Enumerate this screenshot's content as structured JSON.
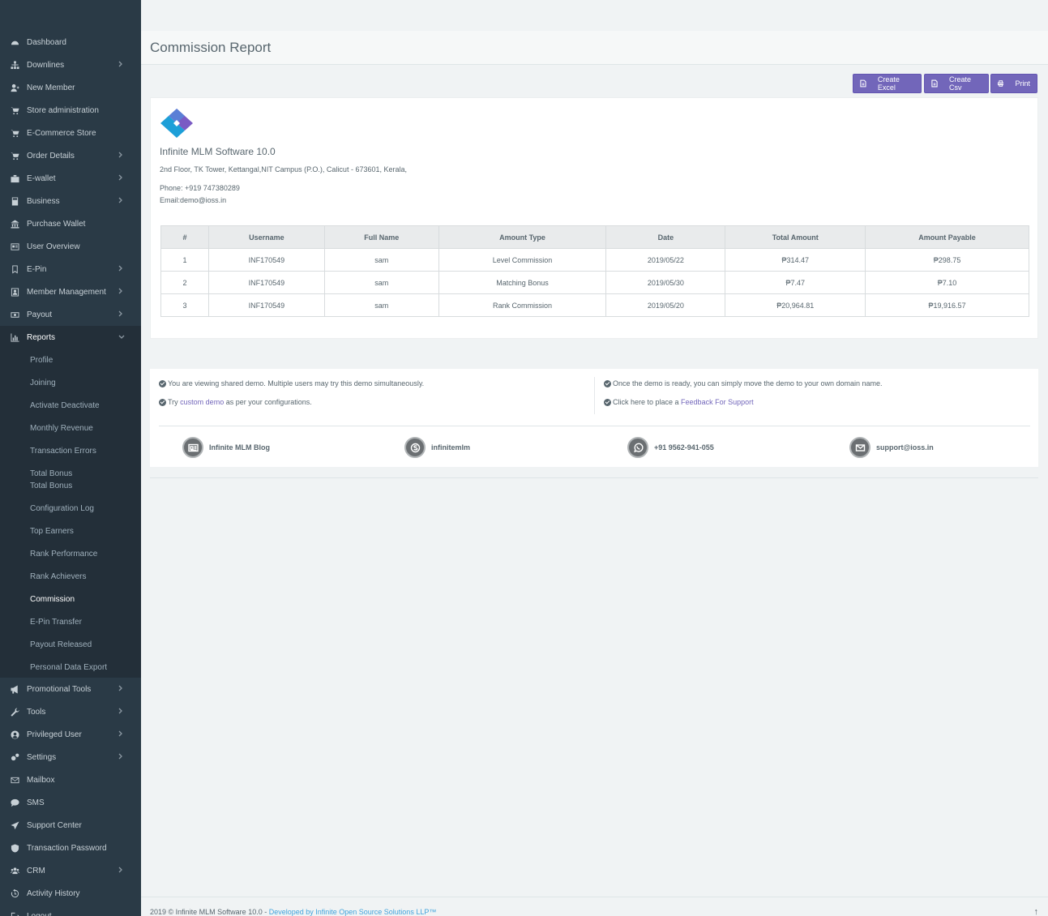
{
  "sidebar": {
    "items": [
      {
        "label": "Dashboard",
        "icon": "dashboard-icon",
        "chevron": false
      },
      {
        "label": "Downlines",
        "icon": "sitemap-icon",
        "chevron": true
      },
      {
        "label": "New Member",
        "icon": "user-plus-icon",
        "chevron": false
      },
      {
        "label": "Store administration",
        "icon": "cart-icon",
        "chevron": false
      },
      {
        "label": "E-Commerce Store",
        "icon": "cart-icon",
        "chevron": false
      },
      {
        "label": "Order Details",
        "icon": "cart-icon",
        "chevron": true
      },
      {
        "label": "E-wallet",
        "icon": "briefcase-icon",
        "chevron": true
      },
      {
        "label": "Business",
        "icon": "calculator-icon",
        "chevron": true
      },
      {
        "label": "Purchase Wallet",
        "icon": "bank-icon",
        "chevron": false
      },
      {
        "label": "User Overview",
        "icon": "id-card-icon",
        "chevron": false
      },
      {
        "label": "E-Pin",
        "icon": "bookmark-icon",
        "chevron": true
      },
      {
        "label": "Member Management",
        "icon": "user-square-icon",
        "chevron": true
      },
      {
        "label": "Payout",
        "icon": "money-icon",
        "chevron": true
      },
      {
        "label": "Reports",
        "icon": "bar-chart-icon",
        "chevron": true
      }
    ],
    "report_subitems": [
      "Profile",
      "Joining",
      "Activate Deactivate",
      "Monthly Revenue",
      "Transaction Errors",
      "Total Bonus",
      "Total Bonus",
      "Configuration Log",
      "Top Earners",
      "Rank Performance",
      "Rank Achievers",
      "Commission",
      "E-Pin Transfer",
      "Payout Released",
      "Personal Data Export"
    ],
    "items_after": [
      {
        "label": "Promotional Tools",
        "icon": "bullhorn-icon",
        "chevron": true
      },
      {
        "label": "Tools",
        "icon": "wrench-icon",
        "chevron": true
      },
      {
        "label": "Privileged User",
        "icon": "user-circle-icon",
        "chevron": true
      },
      {
        "label": "Settings",
        "icon": "cogs-icon",
        "chevron": true
      },
      {
        "label": "Mailbox",
        "icon": "envelope-icon",
        "chevron": false
      },
      {
        "label": "SMS",
        "icon": "comment-icon",
        "chevron": false
      },
      {
        "label": "Support Center",
        "icon": "plane-icon",
        "chevron": false
      },
      {
        "label": "Transaction Password",
        "icon": "shield-icon",
        "chevron": false
      },
      {
        "label": "CRM",
        "icon": "users-icon",
        "chevron": true
      },
      {
        "label": "Activity History",
        "icon": "history-icon",
        "chevron": false
      },
      {
        "label": "Logout",
        "icon": "logout-icon",
        "chevron": false
      }
    ]
  },
  "page": {
    "title": "Commission Report"
  },
  "toolbar": {
    "excel": "Create Excel",
    "csv": "Create Csv",
    "print": "Print"
  },
  "company": {
    "name": "Infinite MLM Software 10.0",
    "address": "2nd Floor, TK Tower, Kettangal,NIT Campus (P.O.), Calicut - 673601, Kerala,",
    "phone": "Phone: +919 747380289",
    "email": "Email:demo@ioss.in"
  },
  "table": {
    "headers": [
      "#",
      "Username",
      "Full Name",
      "Amount Type",
      "Date",
      "Total Amount",
      "Amount Payable"
    ],
    "rows": [
      [
        "1",
        "INF170549",
        "sam",
        "Level Commission",
        "2019/05/22",
        "₱314.47",
        "₱298.75"
      ],
      [
        "2",
        "INF170549",
        "sam",
        "Matching Bonus",
        "2019/05/30",
        "₱7.47",
        "₱7.10"
      ],
      [
        "3",
        "INF170549",
        "sam",
        "Rank Commission",
        "2019/05/20",
        "₱20,964.81",
        "₱19,916.57"
      ]
    ]
  },
  "info": {
    "left1": "You are viewing shared demo. Multiple users may try this demo simultaneously.",
    "left2_pre": "Try ",
    "left2_link": "custom demo",
    "left2_post": " as per your configurations.",
    "right1": "Once the demo is ready, you can simply move the demo to your own domain name.",
    "right2_pre": "Click here to place a ",
    "right2_link": "Feedback For Support"
  },
  "contacts": [
    {
      "label": "Infinite MLM Blog",
      "icon": "newspaper-icon"
    },
    {
      "label": "infinitemlm",
      "icon": "skype-icon"
    },
    {
      "label": "+91 9562-941-055",
      "icon": "whatsapp-icon"
    },
    {
      "label": "support@ioss.in",
      "icon": "envelope-icon"
    }
  ],
  "footer": {
    "text": "2019 © Infinite MLM Software 10.0 - ",
    "link": "Developed by Infinite Open Source Solutions LLP™",
    "top_arrow": "↑"
  },
  "colors": {
    "sidebar": "#2a3a46",
    "accent": "#7266ba",
    "link": "#3fa3dc"
  }
}
